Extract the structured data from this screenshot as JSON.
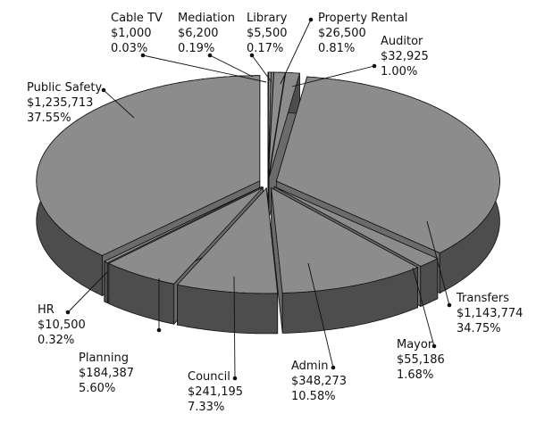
{
  "chart_data": {
    "type": "pie",
    "categories": [
      "Cable TV",
      "Mediation",
      "Library",
      "Property Rental",
      "Auditor",
      "Transfers",
      "Mayor",
      "Admin",
      "Council",
      "Planning",
      "HR",
      "Public Safety"
    ],
    "values": [
      1000,
      6200,
      5500,
      26500,
      32925,
      1143774,
      55186,
      348273,
      241195,
      184387,
      10500,
      1235713
    ],
    "value_labels": [
      "$1,000",
      "$6,200",
      "$5,500",
      "$26,500",
      "$32,925",
      "$1,143,774",
      "$55,186",
      "$348,273",
      "$241,195",
      "$184,387",
      "$10,500",
      "$1,235,713"
    ],
    "percents": [
      0.03,
      0.19,
      0.17,
      0.81,
      1.0,
      34.75,
      1.68,
      10.58,
      7.33,
      5.6,
      0.32,
      37.55
    ],
    "percent_labels": [
      "0.03%",
      "0.19%",
      "0.17%",
      "0.81%",
      "1.00%",
      "34.75%",
      "1.68%",
      "10.58%",
      "7.33%",
      "5.60%",
      "0.32%",
      "37.55%"
    ],
    "color": "#8c8c8c"
  }
}
